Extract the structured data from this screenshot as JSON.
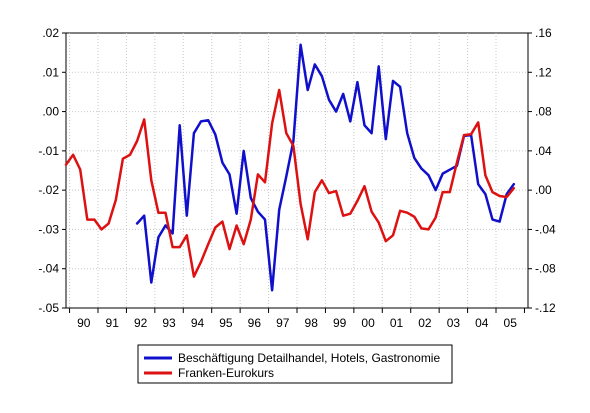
{
  "chart_data": {
    "type": "line",
    "title": "",
    "xlabel": "",
    "ylabel": "",
    "x_range": [
      1989.75,
      2006.0
    ],
    "x_ticks": [
      "90",
      "91",
      "92",
      "93",
      "94",
      "95",
      "96",
      "97",
      "98",
      "99",
      "00",
      "01",
      "02",
      "03",
      "04",
      "05"
    ],
    "ylim_left": [
      -0.05,
      0.02
    ],
    "ylim_right": [
      -0.12,
      0.16
    ],
    "yticks_left": [
      ".02",
      ".01",
      ".00",
      "-.01",
      "-.02",
      "-.03",
      "-.04",
      "-.05"
    ],
    "yticks_right": [
      ".16",
      ".12",
      ".08",
      ".04",
      ".00",
      "-.04",
      "-.08",
      "-.12"
    ],
    "grid": true,
    "legend_position": "bottom",
    "series": [
      {
        "name": "Beschäftigung Detailhandel, Hotels, Gastronomie",
        "color": "#1010cc",
        "axis": "left",
        "x": [
          1992.25,
          1992.5,
          1992.75,
          1993.0,
          1993.25,
          1993.5,
          1993.75,
          1994.0,
          1994.25,
          1994.5,
          1994.75,
          1995.0,
          1995.25,
          1995.5,
          1995.75,
          1996.0,
          1996.25,
          1996.5,
          1996.75,
          1997.0,
          1997.25,
          1997.5,
          1997.75,
          1998.0,
          1998.25,
          1998.5,
          1998.75,
          1999.0,
          1999.25,
          1999.5,
          1999.75,
          2000.0,
          2000.25,
          2000.5,
          2000.75,
          2001.0,
          2001.25,
          2001.5,
          2001.75,
          2002.0,
          2002.25,
          2002.5,
          2002.75,
          2003.0,
          2003.25,
          2003.5,
          2003.75,
          2004.0,
          2004.25,
          2004.5,
          2004.75,
          2005.0,
          2005.25,
          2005.5
        ],
        "y": [
          -0.0285,
          -0.0265,
          -0.0435,
          -0.032,
          -0.029,
          -0.031,
          -0.0035,
          -0.0265,
          -0.0055,
          -0.0025,
          -0.0022,
          -0.0058,
          -0.013,
          -0.016,
          -0.026,
          -0.01,
          -0.022,
          -0.0255,
          -0.0275,
          -0.0455,
          -0.025,
          -0.0165,
          -0.0075,
          0.017,
          0.0055,
          0.012,
          0.009,
          0.003,
          0.0,
          0.0045,
          -0.0025,
          0.0075,
          -0.0035,
          -0.0055,
          0.0115,
          -0.007,
          0.0078,
          0.0063,
          -0.0055,
          -0.0118,
          -0.0145,
          -0.0162,
          -0.02,
          -0.0158,
          -0.0148,
          -0.0138,
          -0.0062,
          -0.006,
          -0.0185,
          -0.021,
          -0.0275,
          -0.028,
          -0.021,
          -0.0185
        ]
      },
      {
        "name": "Franken-Eurokurs",
        "color": "#dd1111",
        "axis": "right",
        "x": [
          1989.75,
          1990.0,
          1990.25,
          1990.5,
          1990.75,
          1991.0,
          1991.25,
          1991.5,
          1991.75,
          1992.0,
          1992.25,
          1992.5,
          1992.75,
          1993.0,
          1993.25,
          1993.5,
          1993.75,
          1994.0,
          1994.25,
          1994.5,
          1994.75,
          1995.0,
          1995.25,
          1995.5,
          1995.75,
          1996.0,
          1996.25,
          1996.5,
          1996.75,
          1997.0,
          1997.25,
          1997.5,
          1997.75,
          1998.0,
          1998.25,
          1998.5,
          1998.75,
          1999.0,
          1999.25,
          1999.5,
          1999.75,
          2000.0,
          2000.25,
          2000.5,
          2000.75,
          2001.0,
          2001.25,
          2001.5,
          2001.75,
          2002.0,
          2002.25,
          2002.5,
          2002.75,
          2003.0,
          2003.25,
          2003.5,
          2003.75,
          2004.0,
          2004.25,
          2004.5,
          2004.75,
          2005.0,
          2005.25,
          2005.5
        ],
        "y": [
          0.026,
          0.036,
          0.021,
          -0.03,
          -0.03,
          -0.04,
          -0.034,
          -0.01,
          0.032,
          0.036,
          0.05,
          0.072,
          0.01,
          -0.023,
          -0.023,
          -0.058,
          -0.058,
          -0.046,
          -0.088,
          -0.073,
          -0.055,
          -0.038,
          -0.032,
          -0.06,
          -0.036,
          -0.055,
          -0.03,
          0.016,
          0.008,
          0.068,
          0.102,
          0.058,
          0.045,
          -0.014,
          -0.05,
          -0.002,
          0.01,
          -0.003,
          -0.001,
          -0.026,
          -0.024,
          -0.011,
          0.004,
          -0.022,
          -0.033,
          -0.052,
          -0.046,
          -0.021,
          -0.023,
          -0.027,
          -0.039,
          -0.04,
          -0.028,
          -0.002,
          -0.002,
          0.028,
          0.056,
          0.057,
          0.069,
          0.015,
          -0.002,
          -0.006,
          -0.007,
          0.002
        ]
      }
    ]
  }
}
